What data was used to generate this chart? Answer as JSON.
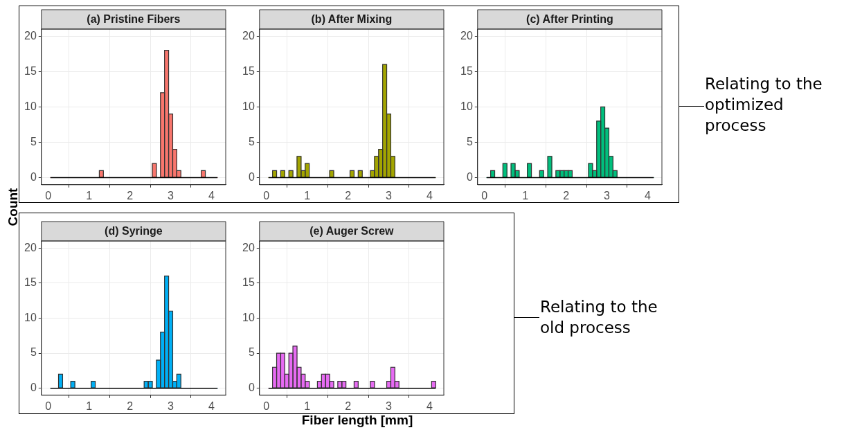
{
  "chart_data": [
    {
      "type": "histogram",
      "title": "(a) Pristine Fibers",
      "ylabel": "Count",
      "color": "#f8766d",
      "grid": true,
      "xlim": [
        -0.17,
        4.35
      ],
      "ylim": [
        -1,
        21
      ],
      "xticks": [
        0,
        1,
        2,
        3,
        4
      ],
      "yticks": [
        0,
        5,
        10,
        15,
        20
      ],
      "bins": [
        0.05,
        0.15,
        0.25,
        0.35,
        0.45,
        0.55,
        0.65,
        0.75,
        0.85,
        0.95,
        1.05,
        1.15,
        1.25,
        1.35,
        1.45,
        1.55,
        1.65,
        1.75,
        1.85,
        1.95,
        2.05,
        2.15,
        2.25,
        2.35,
        2.45,
        2.55,
        2.65,
        2.75,
        2.85,
        2.95,
        3.05,
        3.15,
        3.25,
        3.35,
        3.45,
        3.55,
        3.65,
        3.75,
        3.85,
        3.95,
        4.05,
        4.15
      ],
      "values": [
        0,
        0,
        0,
        0,
        0,
        0,
        0,
        0,
        0,
        0,
        0,
        0,
        1,
        0,
        0,
        0,
        0,
        0,
        0,
        0,
        0,
        0,
        0,
        0,
        0,
        2,
        0,
        12,
        18,
        9,
        4,
        1,
        0,
        0,
        0,
        0,
        0,
        1,
        0,
        0,
        0
      ]
    },
    {
      "type": "histogram",
      "title": "(b) After Mixing",
      "color": "#a3a500",
      "grid": true,
      "xlim": [
        -0.17,
        4.35
      ],
      "ylim": [
        -1,
        21
      ],
      "xticks": [
        0,
        1,
        2,
        3,
        4
      ],
      "yticks": [
        0,
        5,
        10,
        15,
        20
      ],
      "bins": [
        0.05,
        0.15,
        0.25,
        0.35,
        0.45,
        0.55,
        0.65,
        0.75,
        0.85,
        0.95,
        1.05,
        1.15,
        1.25,
        1.35,
        1.45,
        1.55,
        1.65,
        1.75,
        1.85,
        1.95,
        2.05,
        2.15,
        2.25,
        2.35,
        2.45,
        2.55,
        2.65,
        2.75,
        2.85,
        2.95,
        3.05,
        3.15,
        3.25,
        3.35,
        3.45,
        3.55,
        3.65,
        3.75,
        3.85,
        3.95,
        4.05,
        4.15
      ],
      "values": [
        0,
        1,
        0,
        1,
        0,
        1,
        0,
        3,
        1,
        2,
        0,
        0,
        0,
        0,
        0,
        1,
        0,
        0,
        0,
        0,
        1,
        0,
        1,
        0,
        0,
        1,
        3,
        4,
        16,
        9,
        3,
        0,
        0,
        0,
        0,
        0,
        0,
        0,
        0,
        0,
        0
      ]
    },
    {
      "type": "histogram",
      "title": "(c) After Printing",
      "color": "#00bf7d",
      "grid": true,
      "xlim": [
        -0.17,
        4.35
      ],
      "ylim": [
        -1,
        21
      ],
      "xticks": [
        0,
        1,
        2,
        3,
        4
      ],
      "yticks": [
        0,
        5,
        10,
        15,
        20
      ],
      "annotations": [
        "Relating to the optimized process"
      ],
      "bins": [
        0.05,
        0.15,
        0.25,
        0.35,
        0.45,
        0.55,
        0.65,
        0.75,
        0.85,
        0.95,
        1.05,
        1.15,
        1.25,
        1.35,
        1.45,
        1.55,
        1.65,
        1.75,
        1.85,
        1.95,
        2.05,
        2.15,
        2.25,
        2.35,
        2.45,
        2.55,
        2.65,
        2.75,
        2.85,
        2.95,
        3.05,
        3.15,
        3.25,
        3.35,
        3.45,
        3.55,
        3.65,
        3.75,
        3.85,
        3.95,
        4.05,
        4.15
      ],
      "values": [
        0,
        1,
        0,
        0,
        2,
        0,
        2,
        1,
        0,
        0,
        2,
        0,
        0,
        1,
        0,
        3,
        0,
        1,
        1,
        1,
        1,
        0,
        0,
        0,
        0,
        2,
        1,
        8,
        10,
        7,
        3,
        1,
        0,
        0,
        0,
        0,
        0,
        0,
        0,
        0,
        0
      ]
    },
    {
      "type": "histogram",
      "title": "(d) Syringe",
      "color": "#00b0f6",
      "grid": true,
      "xlim": [
        -0.17,
        4.35
      ],
      "ylim": [
        -1,
        21
      ],
      "xticks": [
        0,
        1,
        2,
        3,
        4
      ],
      "yticks": [
        0,
        5,
        10,
        15,
        20
      ],
      "bins": [
        0.05,
        0.15,
        0.25,
        0.35,
        0.45,
        0.55,
        0.65,
        0.75,
        0.85,
        0.95,
        1.05,
        1.15,
        1.25,
        1.35,
        1.45,
        1.55,
        1.65,
        1.75,
        1.85,
        1.95,
        2.05,
        2.15,
        2.25,
        2.35,
        2.45,
        2.55,
        2.65,
        2.75,
        2.85,
        2.95,
        3.05,
        3.15,
        3.25,
        3.35,
        3.45,
        3.55,
        3.65,
        3.75,
        3.85,
        3.95,
        4.05,
        4.15
      ],
      "values": [
        0,
        0,
        2,
        0,
        0,
        1,
        0,
        0,
        0,
        0,
        1,
        0,
        0,
        0,
        0,
        0,
        0,
        0,
        0,
        0,
        0,
        0,
        0,
        1,
        1,
        0,
        4,
        8,
        16,
        11,
        1,
        2,
        0,
        0,
        0,
        0,
        0,
        0,
        0,
        0,
        0
      ]
    },
    {
      "type": "histogram",
      "title": "(e) Auger Screw",
      "xlabel": "Fiber length [mm]",
      "color": "#e76bf3",
      "grid": true,
      "xlim": [
        -0.17,
        4.35
      ],
      "ylim": [
        -1,
        21
      ],
      "xticks": [
        0,
        1,
        2,
        3,
        4
      ],
      "yticks": [
        0,
        5,
        10,
        15,
        20
      ],
      "annotations": [
        "Relating to the old process"
      ],
      "bins": [
        0.05,
        0.15,
        0.25,
        0.35,
        0.45,
        0.55,
        0.65,
        0.75,
        0.85,
        0.95,
        1.05,
        1.15,
        1.25,
        1.35,
        1.45,
        1.55,
        1.65,
        1.75,
        1.85,
        1.95,
        2.05,
        2.15,
        2.25,
        2.35,
        2.45,
        2.55,
        2.65,
        2.75,
        2.85,
        2.95,
        3.05,
        3.15,
        3.25,
        3.35,
        3.45,
        3.55,
        3.65,
        3.75,
        3.85,
        3.95,
        4.05,
        4.15
      ],
      "values": [
        0,
        3,
        5,
        5,
        2,
        5,
        6,
        3,
        2,
        1,
        0,
        0,
        1,
        2,
        2,
        1,
        0,
        1,
        1,
        0,
        0,
        1,
        0,
        0,
        0,
        1,
        0,
        0,
        0,
        1,
        3,
        1,
        0,
        0,
        0,
        0,
        0,
        0,
        0,
        0,
        1
      ]
    }
  ]
}
